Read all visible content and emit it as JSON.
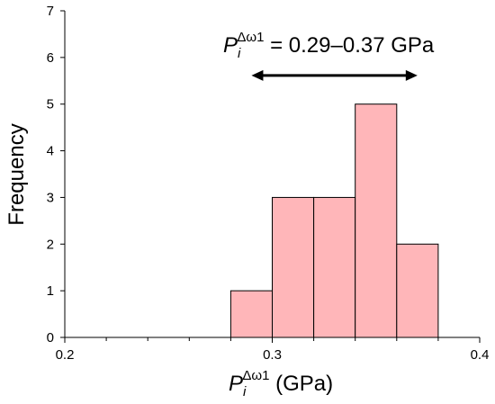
{
  "chart_data": {
    "type": "bar",
    "bins": [
      {
        "x0": 0.28,
        "x1": 0.3,
        "value": 1
      },
      {
        "x0": 0.3,
        "x1": 0.32,
        "value": 3
      },
      {
        "x0": 0.32,
        "x1": 0.34,
        "value": 3
      },
      {
        "x0": 0.34,
        "x1": 0.36,
        "value": 5
      },
      {
        "x0": 0.36,
        "x1": 0.38,
        "value": 2
      }
    ],
    "xlim": [
      0.2,
      0.4
    ],
    "ylim": [
      0,
      7
    ],
    "x_ticks": [
      "0.2",
      "0.3",
      "0.4"
    ],
    "x_minor_ticks": [
      0.22,
      0.24,
      0.26,
      0.28,
      0.32,
      0.34,
      0.36,
      0.38
    ],
    "y_ticks": [
      "0",
      "1",
      "2",
      "3",
      "4",
      "5",
      "6",
      "7"
    ],
    "ylabel": "Frequency",
    "xlabel": {
      "main": "P",
      "sub": "i",
      "sup": "Δω1",
      "suffix": " (GPa)"
    },
    "annotation": {
      "main": "P",
      "sub": "i",
      "sup": "Δω1",
      "suffix": " = 0.29–0.37 GPa",
      "arrow_range": [
        0.29,
        0.37
      ],
      "arrow_y": 6.0
    },
    "grid": false,
    "colors": {
      "bar_fill": "#ffb6b9",
      "bar_edge": "#000000",
      "axis": "#000000"
    }
  }
}
